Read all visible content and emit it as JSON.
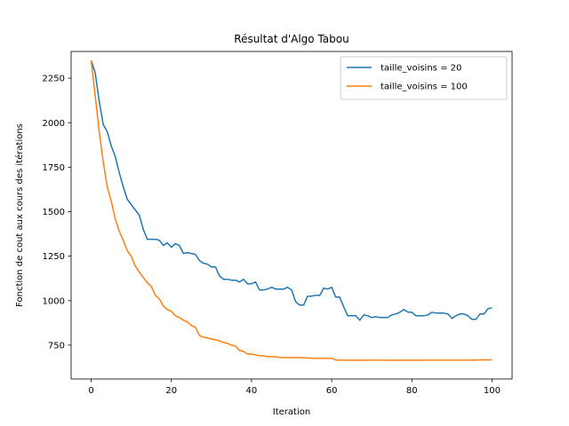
{
  "chart_data": {
    "type": "line",
    "title": "Résultat d'Algo Tabou",
    "xlabel": "Iteration",
    "ylabel": "Fonction de cout aux cours des itérations",
    "xlim": [
      -5,
      105
    ],
    "ylim": [
      560,
      2400
    ],
    "xticks": [
      0,
      20,
      40,
      60,
      80,
      100
    ],
    "xtick_labels": [
      "0",
      "20",
      "40",
      "60",
      "80",
      "100"
    ],
    "yticks": [
      750,
      1000,
      1250,
      1500,
      1750,
      2000,
      2250
    ],
    "ytick_labels": [
      "750",
      "1000",
      "1250",
      "1500",
      "1750",
      "2000",
      "2250"
    ],
    "grid": false,
    "legend_position": "top-right",
    "series": [
      {
        "name": "taille_voisins = 20",
        "color": "#1f77b4",
        "x": [
          0,
          1,
          2,
          3,
          4,
          5,
          6,
          7,
          8,
          9,
          10,
          11,
          12,
          13,
          14,
          15,
          16,
          17,
          18,
          19,
          20,
          21,
          22,
          23,
          24,
          25,
          26,
          27,
          28,
          29,
          30,
          31,
          32,
          33,
          34,
          35,
          36,
          37,
          38,
          39,
          40,
          41,
          42,
          43,
          44,
          45,
          46,
          47,
          48,
          49,
          50,
          51,
          52,
          53,
          54,
          55,
          56,
          57,
          58,
          59,
          60,
          61,
          62,
          63,
          64,
          65,
          66,
          67,
          68,
          69,
          70,
          71,
          72,
          73,
          74,
          75,
          76,
          77,
          78,
          79,
          80,
          81,
          82,
          83,
          84,
          85,
          86,
          87,
          88,
          89,
          90,
          91,
          92,
          93,
          94,
          95,
          96,
          97,
          98,
          99,
          100
        ],
        "values": [
          2350,
          2280,
          2120,
          1990,
          1950,
          1870,
          1810,
          1720,
          1640,
          1570,
          1540,
          1510,
          1480,
          1400,
          1345,
          1345,
          1345,
          1340,
          1310,
          1325,
          1300,
          1320,
          1310,
          1265,
          1270,
          1265,
          1260,
          1225,
          1210,
          1205,
          1190,
          1190,
          1140,
          1120,
          1120,
          1115,
          1115,
          1105,
          1120,
          1095,
          1095,
          1105,
          1060,
          1060,
          1065,
          1075,
          1065,
          1065,
          1065,
          1075,
          1060,
          995,
          975,
          975,
          1025,
          1025,
          1030,
          1030,
          1070,
          1065,
          1075,
          1020,
          1020,
          965,
          915,
          915,
          915,
          890,
          920,
          915,
          905,
          910,
          905,
          905,
          905,
          920,
          925,
          935,
          950,
          935,
          935,
          915,
          915,
          915,
          920,
          935,
          930,
          930,
          930,
          925,
          900,
          915,
          925,
          925,
          915,
          895,
          895,
          925,
          925,
          955,
          960
        ]
      },
      {
        "name": "taille_voisins = 100",
        "color": "#ff7f0e",
        "x": [
          0,
          1,
          2,
          3,
          4,
          5,
          6,
          7,
          8,
          9,
          10,
          11,
          12,
          13,
          14,
          15,
          16,
          17,
          18,
          19,
          20,
          21,
          22,
          23,
          24,
          25,
          26,
          27,
          28,
          29,
          30,
          31,
          32,
          33,
          34,
          35,
          36,
          37,
          38,
          39,
          40,
          41,
          42,
          43,
          44,
          45,
          46,
          47,
          48,
          49,
          50,
          51,
          52,
          53,
          54,
          55,
          56,
          57,
          58,
          59,
          60,
          61,
          62,
          63,
          64,
          65,
          66,
          67,
          68,
          69,
          70,
          71,
          72,
          73,
          74,
          75,
          76,
          77,
          78,
          79,
          80,
          81,
          82,
          83,
          84,
          85,
          86,
          87,
          88,
          89,
          90,
          91,
          92,
          93,
          94,
          95,
          96,
          97,
          98,
          99,
          100
        ],
        "values": [
          2350,
          2150,
          1950,
          1780,
          1640,
          1560,
          1460,
          1390,
          1340,
          1280,
          1250,
          1195,
          1160,
          1130,
          1100,
          1080,
          1030,
          1010,
          970,
          950,
          940,
          915,
          905,
          890,
          880,
          860,
          850,
          805,
          795,
          790,
          785,
          780,
          775,
          765,
          760,
          750,
          745,
          720,
          715,
          700,
          700,
          695,
          690,
          690,
          685,
          685,
          685,
          680,
          680,
          680,
          680,
          680,
          680,
          678,
          678,
          676,
          676,
          676,
          676,
          676,
          676,
          666,
          666,
          665,
          665,
          665,
          665,
          665,
          665,
          665,
          666,
          666,
          666,
          665,
          665,
          665,
          665,
          665,
          665,
          665,
          665,
          665,
          665,
          665,
          666,
          666,
          666,
          666,
          666,
          666,
          666,
          666,
          666,
          666,
          666,
          666,
          666,
          667,
          667,
          667,
          667
        ]
      }
    ]
  }
}
